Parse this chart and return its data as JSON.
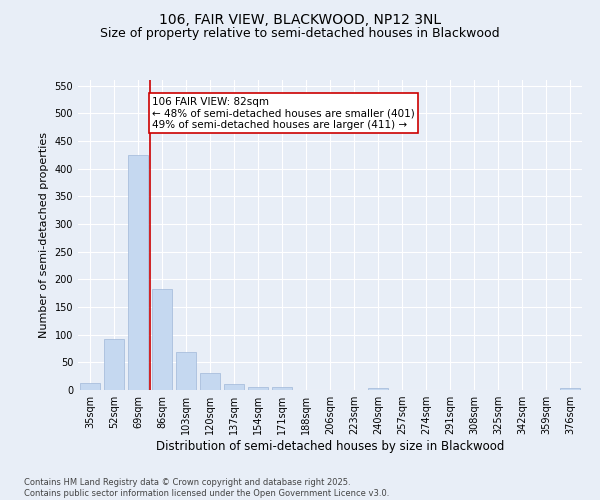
{
  "title": "106, FAIR VIEW, BLACKWOOD, NP12 3NL",
  "subtitle": "Size of property relative to semi-detached houses in Blackwood",
  "xlabel": "Distribution of semi-detached houses by size in Blackwood",
  "ylabel": "Number of semi-detached properties",
  "categories": [
    "35sqm",
    "52sqm",
    "69sqm",
    "86sqm",
    "103sqm",
    "120sqm",
    "137sqm",
    "154sqm",
    "171sqm",
    "188sqm",
    "206sqm",
    "223sqm",
    "240sqm",
    "257sqm",
    "274sqm",
    "291sqm",
    "308sqm",
    "325sqm",
    "342sqm",
    "359sqm",
    "376sqm"
  ],
  "values": [
    12,
    93,
    424,
    183,
    68,
    30,
    11,
    5,
    5,
    0,
    0,
    0,
    3,
    0,
    0,
    0,
    0,
    0,
    0,
    0,
    3
  ],
  "bar_color": "#c5d8f0",
  "bar_edge_color": "#a0b8d8",
  "vline_x": 2.5,
  "vline_color": "#cc0000",
  "annotation_text": "106 FAIR VIEW: 82sqm\n← 48% of semi-detached houses are smaller (401)\n49% of semi-detached houses are larger (411) →",
  "annotation_box_color": "#ffffff",
  "annotation_box_edge_color": "#cc0000",
  "ylim": [
    0,
    560
  ],
  "yticks": [
    0,
    50,
    100,
    150,
    200,
    250,
    300,
    350,
    400,
    450,
    500,
    550
  ],
  "background_color": "#e8eef7",
  "plot_background": "#e8eef7",
  "footer_text": "Contains HM Land Registry data © Crown copyright and database right 2025.\nContains public sector information licensed under the Open Government Licence v3.0.",
  "title_fontsize": 10,
  "subtitle_fontsize": 9,
  "xlabel_fontsize": 8.5,
  "ylabel_fontsize": 8,
  "tick_fontsize": 7,
  "annotation_fontsize": 7.5,
  "footer_fontsize": 6
}
